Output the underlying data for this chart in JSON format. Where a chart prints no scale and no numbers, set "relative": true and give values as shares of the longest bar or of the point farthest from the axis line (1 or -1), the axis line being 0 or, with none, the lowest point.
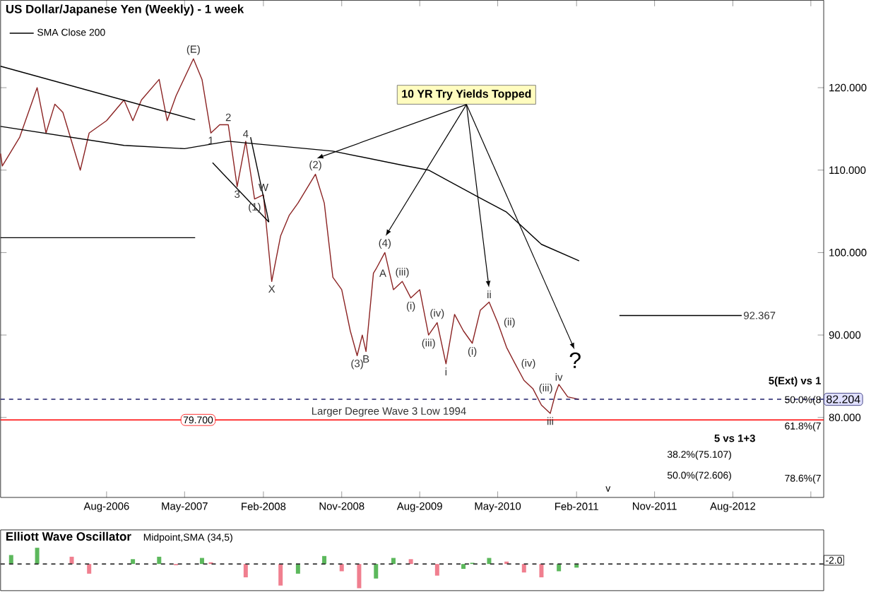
{
  "chart_data": [
    {
      "type": "line",
      "title": "US Dollar/Japanese Yen (Weekly) - 1 week",
      "xlim": [
        "2005-07-26",
        "2013-06-15"
      ],
      "ylim": [
        70.3,
        130.6
      ],
      "xticks": [
        {
          "value": "2006-08",
          "label": "Aug-2006"
        },
        {
          "value": "2007-05",
          "label": "May-2007"
        },
        {
          "value": "2008-02",
          "label": "Feb-2008"
        },
        {
          "value": "2008-11",
          "label": "Nov-2008"
        },
        {
          "value": "2009-08",
          "label": "Aug-2009"
        },
        {
          "value": "2010-05",
          "label": "May-2010"
        },
        {
          "value": "2011-02",
          "label": "Feb-2011"
        },
        {
          "value": "2011-11",
          "label": "Nov-2011"
        },
        {
          "value": "2012-08",
          "label": "Aug-2012"
        },
        {
          "value": "2013-05",
          "label": null
        }
      ],
      "yticks": [
        {
          "value": 80,
          "label": "80.000"
        },
        {
          "value": 90,
          "label": "90.000"
        },
        {
          "value": 100,
          "label": "100.000"
        },
        {
          "value": 110,
          "label": "110.000"
        },
        {
          "value": 120,
          "label": "120.000"
        }
      ],
      "legend": "top left",
      "marker": "none",
      "series": [
        {
          "color": "#8b2323",
          "x": [
            "2005-07-26",
            "2005-08",
            "2005-10",
            "2005-12",
            "2006-01",
            "2006-02",
            "2006-03",
            "2006-05",
            "2006-06",
            "2006-08",
            "2006-10",
            "2006-11",
            "2006-12",
            "2007-02",
            "2007-03",
            "2007-04",
            "2007-06",
            "2007-07",
            "2007-08",
            "2007-09",
            "2007-10",
            "2007-11",
            "2007-12",
            "2008-01",
            "2008-02",
            "2008-03",
            "2008-04",
            "2008-05",
            "2008-06",
            "2008-08",
            "2008-09",
            "2008-10",
            "2008-11",
            "2008-12",
            "2008-12-25",
            "2009-01-12",
            "2009-01-25",
            "2009-02-20",
            "2009-03",
            "2009-04",
            "2009-05",
            "2009-06",
            "2009-07",
            "2009-08",
            "2009-09",
            "2009-10",
            "2009-11",
            "2009-12",
            "2010-01",
            "2010-02",
            "2010-03",
            "2010-04",
            "2010-05",
            "2010-06",
            "2010-07",
            "2010-08",
            "2010-09",
            "2010-10",
            "2010-11",
            "2010-11-20",
            "2010-12",
            "2011-01",
            "2011-02-10"
          ],
          "values": [
            112,
            110.5,
            114,
            120,
            114.5,
            118,
            117,
            110,
            114.5,
            116,
            118.5,
            116,
            118.5,
            121,
            116,
            119,
            123.5,
            121,
            114.5,
            115.5,
            115.5,
            108,
            113.5,
            106.5,
            107,
            96.5,
            102,
            104.5,
            106,
            109.5,
            106,
            97,
            95.5,
            90.5,
            87.5,
            90,
            88,
            97.5,
            98,
            100,
            95.5,
            96.5,
            94.5,
            95.5,
            90,
            91.5,
            86.5,
            92.5,
            90.5,
            89,
            93,
            94,
            91.5,
            88.5,
            86.5,
            84.5,
            83.5,
            81.5,
            80.5,
            83,
            84,
            82.5,
            82.2
          ]
        },
        {
          "name": "SMA Close 200",
          "color": "#000000",
          "x": [
            "2005-07-26",
            "2006-10",
            "2007-05",
            "2007-10",
            "2008-10",
            "2009-06",
            "2009-09",
            "2010-03",
            "2010-06",
            "2010-10",
            "2011-02-10"
          ],
          "values": [
            115.3,
            113,
            112.6,
            113.5,
            112.3,
            110.6,
            110,
            106.6,
            104.9,
            101,
            99
          ]
        },
        {
          "color": "#000000",
          "x": [
            "2005-07-26",
            "2007-06-07"
          ],
          "values": [
            122.6,
            116.1
          ]
        },
        {
          "color": "#000000",
          "x": [
            "2005-07-26",
            "2007-06-07"
          ],
          "values": [
            101.8,
            101.8
          ]
        },
        {
          "color": "#000000",
          "x": [
            "2007-08-07",
            "2008-02-20"
          ],
          "values": [
            110.9,
            103.7
          ]
        },
        {
          "color": "#000000",
          "x": [
            "2007-12-18",
            "2008-02-20"
          ],
          "values": [
            114,
            103.7
          ]
        },
        {
          "color": "#000000",
          "x": [
            "2011-07",
            "2012-09"
          ],
          "values": [
            92.367,
            92.367
          ]
        }
      ],
      "ref_lines": [
        {
          "axis": "y",
          "value": 79.7,
          "label": "79.700",
          "color": "#ff0000"
        },
        {
          "axis": "y",
          "value": 82.204,
          "label": "82.204",
          "color": "#1f1f6b",
          "line_style": "dashed"
        }
      ],
      "annotations": [
        "10 YR Try Yields Topped",
        "?",
        {
          "text": "(2)",
          "x": "2008-08",
          "y": 109.5
        },
        {
          "text": "(4)",
          "x": "2009-04",
          "y": 100
        },
        {
          "text": "ii",
          "x": "2010-04",
          "y": 94
        },
        {
          "text": "(E)",
          "x": "2007-06",
          "y": 123.5
        },
        {
          "text": "1",
          "x": "2007-08",
          "y": 114.5
        },
        {
          "text": "2",
          "x": "2007-10",
          "y": 115.5
        },
        {
          "text": "3",
          "x": "2007-11",
          "y": 108
        },
        {
          "text": "4",
          "x": "2007-12",
          "y": 113.5
        },
        {
          "text": "(1)",
          "x": "2008-01",
          "y": 106.5
        },
        {
          "text": "W",
          "x": "2008-02",
          "y": 107
        },
        {
          "text": "X",
          "x": "2008-03",
          "y": 96.5
        },
        {
          "text": "(3)",
          "x": "2008-12-25",
          "y": 87.5
        },
        {
          "text": "B",
          "x": "2009-01-25",
          "y": 88
        },
        {
          "text": "A",
          "x": "2009-02-20",
          "y": 97.5
        },
        {
          "text": "(iii)",
          "x": "2009-06",
          "y": 96.5
        },
        {
          "text": "(i)",
          "x": "2009-07",
          "y": 94.5
        },
        {
          "text": "(iii)",
          "x": "2009-09",
          "y": 90
        },
        {
          "text": "(iv)",
          "x": "2009-10",
          "y": 91.5
        },
        {
          "text": "i",
          "x": "2009-11",
          "y": 86.5
        },
        {
          "text": "(i)",
          "x": "2010-02",
          "y": 89
        },
        {
          "text": "(ii)",
          "x": "2010-05",
          "y": 91.5
        },
        {
          "text": "(iv)",
          "x": "2010-07",
          "y": 86.5
        },
        {
          "text": "(iii)",
          "x": "2010-09",
          "y": 83.5
        },
        {
          "text": "iii",
          "x": "2010-11",
          "y": 80.5
        },
        {
          "text": "iv",
          "x": "2010-12",
          "y": 84
        },
        "v",
        {
          "text": "Larger Degree Wave 3 Low 1994",
          "x": "2009-04-15",
          "y": 79.7
        },
        {
          "text": "92.367",
          "x": "2012-09",
          "y": 92.367
        },
        "5(Ext) vs 1",
        "50.0%(8",
        "61.8%(7",
        "78.6%(7",
        "5 vs 1+3",
        "38.2%(75.107)",
        "50.0%(72.606)"
      ]
    },
    {
      "type": "bar",
      "title": "Elliott Wave Oscillator",
      "subtitle": "Midpoint,SMA (34,5)",
      "relative": true,
      "xlim": [
        "2005-07-26",
        "2013-06-15"
      ],
      "series": [
        {
          "x": [
            "2005-09",
            "2005-12",
            "2006-04",
            "2006-06",
            "2006-11",
            "2007-02",
            "2007-04",
            "2007-07",
            "2007-08",
            "2007-12",
            "2008-04",
            "2008-06",
            "2008-09",
            "2008-11",
            "2009-01",
            "2009-03",
            "2009-05",
            "2009-07",
            "2009-10",
            "2010-01",
            "2010-02",
            "2010-04",
            "2010-06",
            "2010-08",
            "2010-10",
            "2010-12",
            "2011-02"
          ],
          "values": [
            0.37,
            0.67,
            0.3,
            -0.4,
            0.2,
            0.3,
            -0.05,
            0.25,
            0.07,
            -0.55,
            -0.89,
            -0.4,
            0.33,
            -0.3,
            -1,
            -0.6,
            0.25,
            0.2,
            -0.48,
            -0.2,
            0.05,
            0.25,
            0.1,
            -0.35,
            -0.55,
            -0.3,
            -0.15
          ],
          "colors": [
            "#5cb85c",
            "#5cb85c",
            "#f07f8f",
            "#f07f8f",
            "#5cb85c",
            "#5cb85c",
            "#f07f8f",
            "#5cb85c",
            "#f07f8f",
            "#f07f8f",
            "#f07f8f",
            "#5cb85c",
            "#5cb85c",
            "#f07f8f",
            "#f07f8f",
            "#5cb85c",
            "#5cb85c",
            "#f07f8f",
            "#f07f8f",
            "#5cb85c",
            "#5cb85c",
            "#5cb85c",
            "#f07f8f",
            "#f07f8f",
            "#f07f8f",
            "#5cb85c",
            "#5cb85c"
          ]
        }
      ],
      "ref_lines": [
        {
          "axis": "y",
          "value": 0,
          "color": "#333333",
          "line_style": "dashed"
        }
      ],
      "annotations": [
        "-2.0"
      ]
    }
  ]
}
